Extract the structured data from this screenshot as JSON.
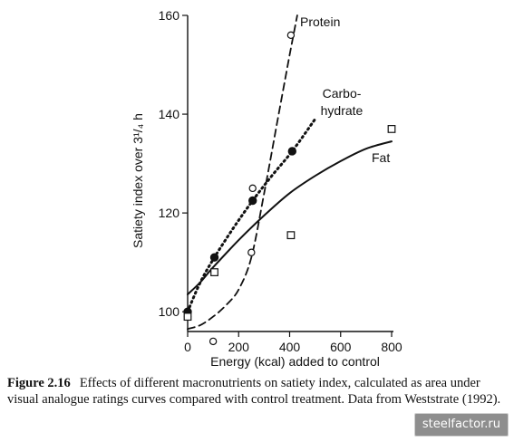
{
  "chart_data": {
    "type": "line",
    "title": "",
    "xlabel": "Energy (kcal) added to control",
    "ylabel": "Satiety index over 3¹/₄ h",
    "xlim": [
      0,
      800
    ],
    "ylim": [
      96,
      160
    ],
    "x_ticks": [
      0,
      200,
      400,
      600,
      800
    ],
    "y_ticks": [
      100,
      120,
      140,
      160
    ],
    "grid": false,
    "series": [
      {
        "name": "Protein",
        "line_style": "dashed",
        "marker": "open-circle",
        "color": "#111111",
        "points": [
          {
            "x": 0,
            "y": 99
          },
          {
            "x": 100,
            "y": 94
          },
          {
            "x": 250,
            "y": 112
          },
          {
            "x": 255,
            "y": 125
          },
          {
            "x": 405,
            "y": 156
          }
        ],
        "curve": [
          {
            "x": 0,
            "y": 96.5
          },
          {
            "x": 50,
            "y": 97.3
          },
          {
            "x": 100,
            "y": 99
          },
          {
            "x": 150,
            "y": 101.3
          },
          {
            "x": 200,
            "y": 104.5
          },
          {
            "x": 250,
            "y": 111
          },
          {
            "x": 300,
            "y": 124
          },
          {
            "x": 350,
            "y": 138
          },
          {
            "x": 400,
            "y": 152
          },
          {
            "x": 430,
            "y": 160
          }
        ]
      },
      {
        "name": "Carbo-\nhydrate",
        "line_style": "dotted",
        "marker": "filled-circle",
        "color": "#111111",
        "points": [
          {
            "x": 0,
            "y": 100
          },
          {
            "x": 105,
            "y": 111
          },
          {
            "x": 255,
            "y": 122.5
          },
          {
            "x": 410,
            "y": 132.5
          }
        ],
        "curve": [
          {
            "x": 0,
            "y": 100
          },
          {
            "x": 50,
            "y": 106
          },
          {
            "x": 105,
            "y": 111
          },
          {
            "x": 180,
            "y": 117
          },
          {
            "x": 255,
            "y": 122.5
          },
          {
            "x": 330,
            "y": 127.5
          },
          {
            "x": 410,
            "y": 132.5
          },
          {
            "x": 500,
            "y": 139
          }
        ]
      },
      {
        "name": "Fat",
        "line_style": "solid",
        "marker": "open-square",
        "color": "#111111",
        "points": [
          {
            "x": 0,
            "y": 99
          },
          {
            "x": 105,
            "y": 108
          },
          {
            "x": 405,
            "y": 115.5
          },
          {
            "x": 800,
            "y": 137
          }
        ],
        "curve": [
          {
            "x": 0,
            "y": 103.5
          },
          {
            "x": 50,
            "y": 106
          },
          {
            "x": 100,
            "y": 109
          },
          {
            "x": 200,
            "y": 114.5
          },
          {
            "x": 300,
            "y": 119.5
          },
          {
            "x": 400,
            "y": 124
          },
          {
            "x": 500,
            "y": 127.5
          },
          {
            "x": 600,
            "y": 130.5
          },
          {
            "x": 700,
            "y": 133
          },
          {
            "x": 800,
            "y": 134.5
          }
        ]
      }
    ]
  },
  "caption": {
    "label": "Figure 2.16",
    "text": "Effects of different macronutrients on satiety index, calculated as area under visual analogue ratings curves compared with control treatment. Data from Weststrate (1992)."
  },
  "watermark": {
    "text": "steelfactor.ru"
  }
}
